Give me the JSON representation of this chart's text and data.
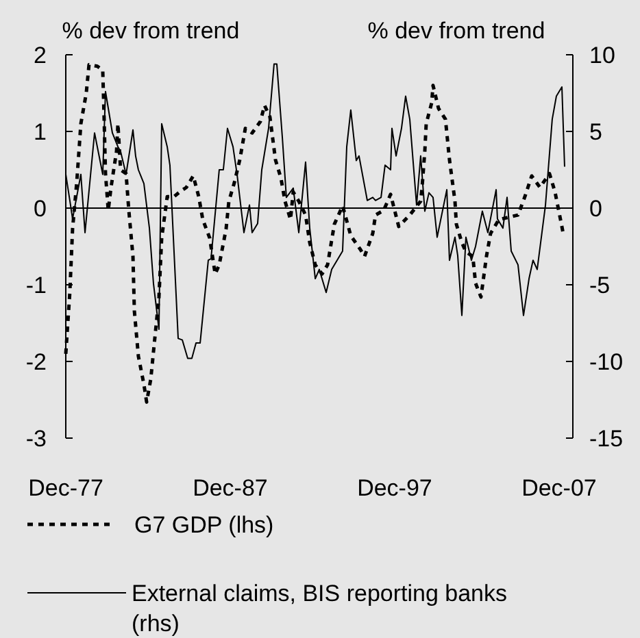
{
  "chart_data": {
    "type": "line",
    "ylabel": "% dev from trend",
    "y2label": "% dev from trend",
    "xlim": [
      "1977-12",
      "2008-10"
    ],
    "xticks": [
      {
        "value": "1977-12",
        "label": "Dec-77"
      },
      {
        "value": "1987-12",
        "label": "Dec-87"
      },
      {
        "value": "1997-12",
        "label": "Dec-97"
      },
      {
        "value": "2007-12",
        "label": "Dec-07"
      }
    ],
    "ylim": [
      -3,
      2
    ],
    "yticks": [
      -3,
      -2,
      -1,
      0,
      1,
      2
    ],
    "y2lim": [
      -15,
      10
    ],
    "y2ticks": [
      -15,
      -10,
      -5,
      0,
      5,
      10
    ],
    "legend": "bottom",
    "grid": false,
    "marker": "none",
    "ref_lines": [
      {
        "axis": "y",
        "value": 0,
        "color": "#000000",
        "line_style": "solid"
      }
    ],
    "series": [
      {
        "name": "G7 GDP  (lhs)",
        "color": "#000000",
        "line_style": "dashed",
        "x": [
          "1977-12",
          "1978-03",
          "1978-05",
          "1978-08",
          "1978-11",
          "1979-03",
          "1979-05",
          "1979-11",
          "1980-03",
          "1980-04",
          "1980-05",
          "1980-07",
          "1980-09",
          "1981-01",
          "1981-02",
          "1981-04",
          "1981-08",
          "1981-10",
          "1982-01",
          "1982-02",
          "1982-05",
          "1982-09",
          "1982-11",
          "1983-02",
          "1983-05",
          "1983-08",
          "1983-10",
          "1984-02",
          "1984-07",
          "1984-11",
          "1985-04",
          "1985-09",
          "1986-01",
          "1986-04",
          "1986-09",
          "1987-01",
          "1987-04",
          "1987-09",
          "1987-11",
          "1988-03",
          "1988-07",
          "1988-11",
          "1989-04",
          "1989-10",
          "1990-01",
          "1990-05",
          "1990-09",
          "1991-01",
          "1991-04",
          "1991-08",
          "1991-10",
          "1992-02",
          "1992-07",
          "1992-10",
          "1993-02",
          "1993-07",
          "1993-11",
          "1994-04",
          "1994-10",
          "1995-04",
          "1995-11",
          "1996-02",
          "1996-08",
          "1996-10",
          "1997-04",
          "1997-09",
          "1998-03",
          "1998-11",
          "1999-07",
          "1999-08",
          "1999-10",
          "1999-11",
          "2000-03",
          "2000-04",
          "2000-08",
          "2001-01",
          "2001-04",
          "2001-08",
          "2001-09",
          "2002-01",
          "2002-04",
          "2002-09",
          "2002-11",
          "2003-03",
          "2003-07",
          "2003-10",
          "2004-04",
          "2004-11",
          "2005-06",
          "2005-11",
          "2006-04",
          "2006-10",
          "2007-05",
          "2007-09",
          "2008-01",
          "2008-03"
        ],
        "values": [
          -1.9,
          -1.1,
          -0.27,
          0.33,
          1.1,
          1.5,
          1.87,
          1.85,
          1.8,
          1.16,
          0.45,
          -0.03,
          0.27,
          0.74,
          1.1,
          0.5,
          0.45,
          -0.03,
          -0.63,
          -1.34,
          -1.93,
          -2.3,
          -2.53,
          -2.23,
          -1.7,
          -1.16,
          -0.39,
          0.15,
          0.15,
          0.21,
          0.27,
          0.42,
          0.15,
          -0.15,
          -0.39,
          -0.86,
          -0.74,
          -0.27,
          0.09,
          0.33,
          0.63,
          1.04,
          0.98,
          1.13,
          1.34,
          1.19,
          0.63,
          0.39,
          0.09,
          -0.15,
          0.21,
          0.09,
          -0.09,
          -0.45,
          -0.74,
          -0.86,
          -0.74,
          -0.21,
          0.03,
          -0.36,
          -0.54,
          -0.63,
          -0.33,
          -0.09,
          -0.03,
          0.18,
          -0.24,
          -0.09,
          0.09,
          0.27,
          0.74,
          1.1,
          1.37,
          1.6,
          1.3,
          1.16,
          0.63,
          0.09,
          -0.21,
          -0.45,
          -0.57,
          -0.63,
          -0.98,
          -1.16,
          -0.63,
          -0.33,
          -0.15,
          -0.12,
          -0.09,
          0.15,
          0.42,
          0.27,
          0.45,
          0.21,
          -0.15,
          -0.33
        ]
      },
      {
        "name": "External claims, BIS reporting banks (rhs)",
        "color": "#000000",
        "line_style": "solid",
        "axis": "y2",
        "x": [
          "1977-12",
          "1978-03",
          "1978-05",
          "1978-11",
          "1979-02",
          "1979-09",
          "1980-03",
          "1980-05",
          "1980-10",
          "1981-02",
          "1981-04",
          "1981-08",
          "1982-01",
          "1982-03",
          "1982-05",
          "1982-09",
          "1983-01",
          "1983-04",
          "1983-08",
          "1983-10",
          "1984-02",
          "1984-04",
          "1984-10",
          "1985-01",
          "1985-05",
          "1985-08",
          "1985-11",
          "1986-02",
          "1986-08",
          "1986-10",
          "1987-04",
          "1987-07",
          "1987-10",
          "1988-02",
          "1988-05",
          "1988-10",
          "1989-02",
          "1989-04",
          "1989-08",
          "1989-11",
          "1990-04",
          "1990-08",
          "1990-10",
          "1991-02",
          "1991-05",
          "1991-10",
          "1992-02",
          "1992-07",
          "1992-10",
          "1993-02",
          "1993-05",
          "1993-10",
          "1994-02",
          "1994-10",
          "1995-01",
          "1995-04",
          "1995-08",
          "1995-10",
          "1996-04",
          "1996-08",
          "1996-10",
          "1997-02",
          "1997-05",
          "1997-09",
          "1997-10",
          "1998-01",
          "1998-05",
          "1998-08",
          "1998-11",
          "1999-04",
          "1999-07",
          "1999-10",
          "2000-01",
          "2000-04",
          "2000-07",
          "2001-02",
          "2001-04",
          "2001-08",
          "2001-10",
          "2002-01",
          "2002-04",
          "2002-08",
          "2002-11",
          "2003-04",
          "2003-08",
          "2004-02",
          "2004-03",
          "2004-07",
          "2004-10",
          "2005-01",
          "2005-06",
          "2005-10",
          "2006-02",
          "2006-05",
          "2006-08",
          "2007-02",
          "2007-07",
          "2007-10",
          "2008-02",
          "2008-04"
        ],
        "values": [
          2.2,
          0.5,
          -0.7,
          2.2,
          -1.6,
          4.9,
          2.2,
          7.6,
          4.9,
          4.0,
          3.7,
          2.2,
          5.1,
          3.4,
          2.5,
          1.6,
          -1.3,
          -4.9,
          -7.9,
          5.5,
          4.0,
          2.8,
          -8.5,
          -8.6,
          -9.8,
          -9.8,
          -8.8,
          -8.8,
          -3.4,
          -3.3,
          2.5,
          2.5,
          5.2,
          4.0,
          2.2,
          -1.6,
          0.2,
          -1.6,
          -1.0,
          2.5,
          5.2,
          9.4,
          9.4,
          4.6,
          0.7,
          1.3,
          -1.6,
          3.0,
          -1.3,
          -4.6,
          -4.0,
          -5.5,
          -4.0,
          -2.8,
          4.0,
          6.4,
          3.1,
          3.4,
          0.5,
          0.7,
          0.5,
          0.7,
          2.8,
          2.5,
          5.2,
          3.4,
          5.2,
          7.3,
          5.8,
          0.2,
          3.4,
          -0.2,
          1.0,
          0.7,
          -1.9,
          1.2,
          -3.4,
          -1.9,
          -3.1,
          -7.0,
          -1.9,
          -3.4,
          -2.5,
          -0.2,
          -1.6,
          1.2,
          -0.7,
          -1.3,
          0.7,
          -2.8,
          -3.7,
          -7.0,
          -4.6,
          -3.4,
          -4.0,
          0.2,
          5.8,
          7.3,
          7.9,
          2.7
        ]
      }
    ]
  }
}
